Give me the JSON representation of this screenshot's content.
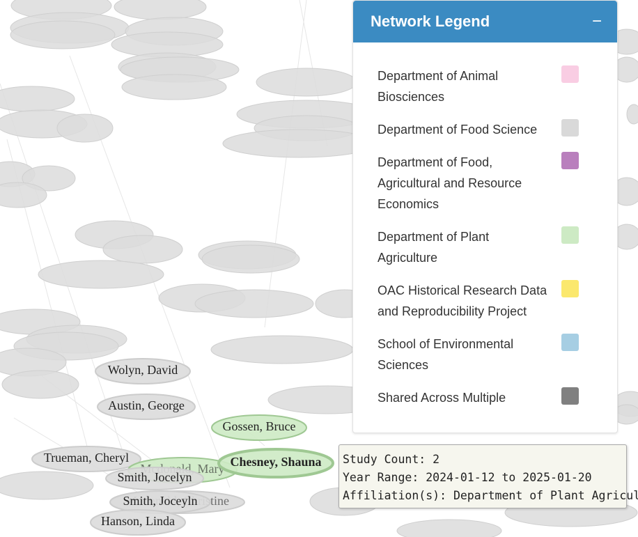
{
  "legend": {
    "title": "Network Legend",
    "toggle": "−",
    "items": [
      {
        "label": "Department of Animal Biosciences",
        "color": "#f9cde3"
      },
      {
        "label": "Department of Food Science",
        "color": "#d9d9d9"
      },
      {
        "label": "Department of Food, Agricultural and Resource Economics",
        "color": "#b97fbd"
      },
      {
        "label": "Department of Plant Agriculture",
        "color": "#cdeac4"
      },
      {
        "label": "OAC Historical Research Data and Reproducibility Project",
        "color": "#fbe86d"
      },
      {
        "label": "School of Environmental Sciences",
        "color": "#a6cee3"
      },
      {
        "label": "Shared Across Multiple",
        "color": "#808080"
      }
    ]
  },
  "nodes": [
    {
      "label": "Wolyn, David",
      "color": "#dcdcdc"
    },
    {
      "label": "Austin, George",
      "color": "#dcdcdc"
    },
    {
      "label": "Gossen, Bruce",
      "color": "#cdeac4"
    },
    {
      "label": "Trueman, Cheryl",
      "color": "#dcdcdc"
    },
    {
      "label": "Mcdonald, Mary",
      "color": "#cdeac4"
    },
    {
      "label": "Smith, Jocelyn",
      "color": "#dcdcdc"
    },
    {
      "label": "Mcdonald, Christine",
      "color": "#dcdcdc"
    },
    {
      "label": "Smith, Joceyln",
      "color": "#dcdcdc"
    },
    {
      "label": "Hanson, Linda",
      "color": "#dcdcdc"
    },
    {
      "label": "Chesney, Shauna",
      "color": "#cdeac4"
    }
  ],
  "tooltip": {
    "lines": [
      "Study Count: 2",
      "Year Range: 2024-01-12 to 2025-01-20",
      "Affiliation(s): Department of Plant Agriculture"
    ]
  }
}
